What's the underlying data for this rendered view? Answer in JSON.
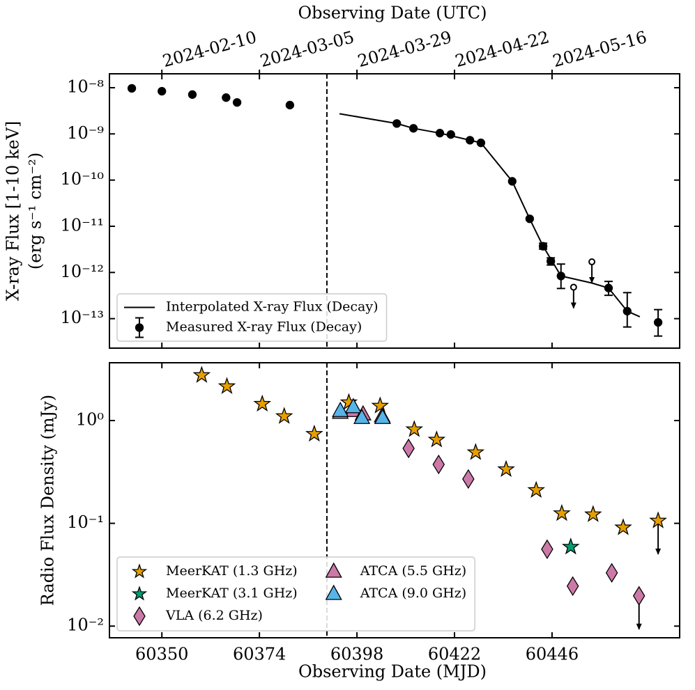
{
  "chart_data": [
    {
      "type": "scatter",
      "xlabel_top": "Observing Date (UTC)",
      "ylabel": [
        "X-ray Flux [1-10 keV]",
        "(erg s⁻¹ cm⁻²)"
      ],
      "xlim": [
        60337.1,
        60477.4
      ],
      "xticks": [
        {
          "value": 60350,
          "label": "2024-02-10"
        },
        {
          "value": 60374,
          "label": "2024-03-05"
        },
        {
          "value": 60398,
          "label": "2024-03-29"
        },
        {
          "value": 60422,
          "label": "2024-04-22"
        },
        {
          "value": 60446,
          "label": "2024-05-16"
        }
      ],
      "yscale": "log",
      "ylim": [
        2.3e-14,
        2e-08
      ],
      "yticks": [
        {
          "value": 1e-08,
          "label": "10⁻⁸"
        },
        {
          "value": 1e-09,
          "label": "10⁻⁹"
        },
        {
          "value": 1e-10,
          "label": "10⁻¹⁰"
        },
        {
          "value": 1e-11,
          "label": "10⁻¹¹"
        },
        {
          "value": 1e-12,
          "label": "10⁻¹²"
        },
        {
          "value": 1e-13,
          "label": "10⁻¹³"
        }
      ],
      "vline": 60390.6,
      "legend": "lower left",
      "series": [
        {
          "name": "Interpolated X-ray Flux (Decay)",
          "style": "line",
          "color": "#000000",
          "x": [
            60393.7,
            60407.8,
            60411.9,
            60418.4,
            60425.8,
            60428.5,
            60434.0,
            60436.2,
            60440.5,
            60443.8,
            60448.2,
            60455.8,
            60459.9,
            60464.5,
            60467.6
          ],
          "values": [
            2.73e-09,
            1.68e-09,
            1.32e-09,
            1.04e-09,
            7.3e-10,
            6.4e-10,
            1.63e-10,
            9.4e-11,
            1.45e-11,
            3.7e-12,
            8.4e-13,
            5.9e-13,
            4.6e-13,
            1.45e-13,
            1.1e-13
          ]
        },
        {
          "name": "Measured X-ray Flux (Decay)",
          "style": "errorbar",
          "marker": "circle",
          "color": "#000000",
          "x": [
            60342.6,
            60350,
            60357.5,
            60365.8,
            60368.5,
            60381.5,
            60407.8,
            60411.9,
            60418.4,
            60421.1,
            60425.8,
            60428.5,
            60436.2,
            60440.5,
            60443.8,
            60445.7,
            60448.2,
            60459.9,
            60464.5,
            60472.1
          ],
          "values": [
            9.7e-09,
            8.4e-09,
            7.1e-09,
            6.1e-09,
            4.8e-09,
            4.2e-09,
            1.68e-09,
            1.32e-09,
            1.04e-09,
            9.7e-10,
            7.3e-10,
            6.4e-10,
            9.4e-11,
            1.45e-11,
            3.7e-12,
            1.75e-12,
            8.4e-13,
            4.6e-13,
            1.45e-13,
            8.3e-14
          ],
          "lower": [
            null,
            null,
            null,
            null,
            null,
            null,
            null,
            null,
            null,
            null,
            null,
            null,
            null,
            null,
            3.2e-12,
            1.45e-12,
            4.5e-13,
            3.2e-13,
            6.6e-14,
            4.2e-14
          ],
          "upper": [
            null,
            null,
            null,
            null,
            null,
            null,
            null,
            null,
            null,
            null,
            null,
            null,
            null,
            null,
            4.3e-12,
            2.07e-12,
            1.52e-12,
            6.4e-13,
            3.66e-13,
            1.57e-13
          ],
          "upper_limit_x": [
            60451.3,
            60455.8
          ],
          "upper_limits": [
            4.8e-13,
            1.7e-12
          ]
        }
      ]
    },
    {
      "type": "scatter",
      "xlabel": "Observing Date (MJD)",
      "ylabel": [
        "Radio Flux Density (mJy)"
      ],
      "xlim": [
        60337.1,
        60477.4
      ],
      "xticks": [
        60350,
        60374,
        60398,
        60422,
        60446
      ],
      "yscale": "log",
      "ylim": [
        0.0077,
        3.65
      ],
      "yticks": [
        {
          "value": 0.01,
          "label": "10⁻²"
        },
        {
          "value": 0.1,
          "label": "10⁻¹"
        },
        {
          "value": 1,
          "label": "10⁰"
        }
      ],
      "vline": 60390.6,
      "legend": "lower left",
      "legend_columns": 2,
      "series": [
        {
          "name": "MeerKAT (1.3 GHz)",
          "marker": "star",
          "color": "#e69f00",
          "x": [
            60359.8,
            60366.0,
            60374.7,
            60380.1,
            60387.5,
            60396.0,
            60403.7,
            60412.1,
            60417.6,
            60427.2,
            60434.7,
            60442.1,
            60448.4,
            60456.1,
            60463.5,
            60472.1
          ],
          "values": [
            2.76,
            2.15,
            1.45,
            1.1,
            0.74,
            1.5,
            1.39,
            0.82,
            0.65,
            0.49,
            0.335,
            0.21,
            0.125,
            0.122,
            0.091,
            0.106
          ],
          "upper_limit_index": [
            15
          ]
        },
        {
          "name": "MeerKAT (3.1 GHz)",
          "marker": "star",
          "color": "#009e73",
          "x": [
            60450.6
          ],
          "values": [
            0.059
          ]
        },
        {
          "name": "VLA (6.2 GHz)",
          "marker": "diamond",
          "color": "#cc79a7",
          "x": [
            60410.7,
            60418.1,
            60425.4,
            60444.8,
            60451.1,
            60460.7,
            60467.4
          ],
          "values": [
            0.536,
            0.374,
            0.27,
            0.056,
            0.0245,
            0.033,
            0.0197
          ],
          "upper_limit_index": [
            6
          ]
        },
        {
          "name": "ATCA (5.5 GHz)",
          "marker": "triangle",
          "color": "#cc79a7",
          "x": [
            60393.9,
            60397.1,
            60399.5,
            60404.2
          ],
          "values": [
            1.19,
            1.24,
            1.15,
            1.1
          ]
        },
        {
          "name": "ATCA (9.0 GHz)",
          "marker": "triangle",
          "color": "#56b4e9",
          "x": [
            60393.9,
            60397.1,
            60399.2,
            60404.3
          ],
          "values": [
            1.24,
            1.35,
            1.06,
            1.06
          ]
        }
      ]
    }
  ]
}
